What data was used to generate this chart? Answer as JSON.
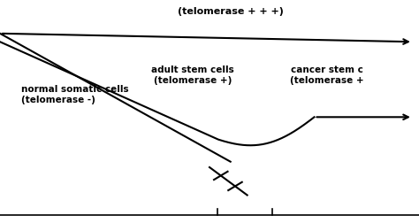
{
  "background_color": "#ffffff",
  "germ_line_label": "(telomerase + + +)",
  "adult_stem_label1": "adult stem cells",
  "adult_stem_label2": "(telomerase +)",
  "cancer_stem_label1": "cancer stem c",
  "cancer_stem_label2": "(telomerase +",
  "somatic_label1": "normal somatic cells",
  "somatic_label2": "(telomerase -)",
  "line_color": "#000000",
  "dpi": 100,
  "figsize": [
    4.74,
    2.52
  ]
}
